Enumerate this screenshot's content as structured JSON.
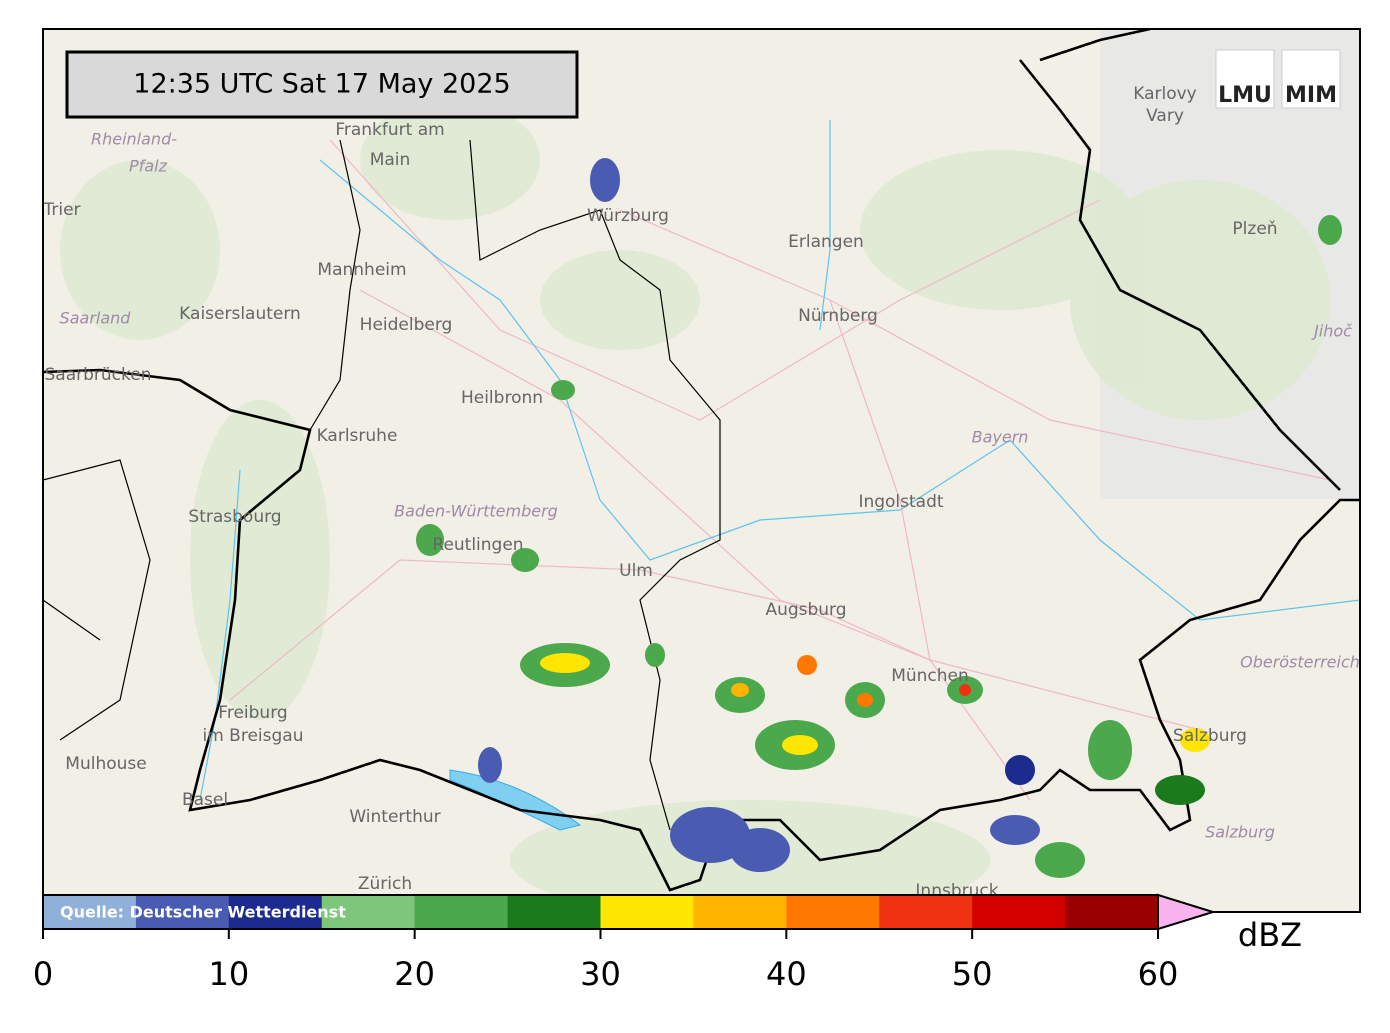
{
  "map": {
    "timestamp": "12:35 UTC  Sat 17 May 2025",
    "logo": [
      "LMU",
      "MIM"
    ],
    "places": [
      "Frankfurt am",
      "Main",
      "Trier",
      "Mannheim",
      "Kaiserslautern",
      "Heidelberg",
      "Saarbrücken",
      "Heilbronn",
      "Karlsruhe",
      "Strasbourg",
      "Reutlingen",
      "Ulm",
      "Augsburg",
      "München",
      "Freiburg",
      "im Breisgau",
      "Mulhouse",
      "Basel",
      "Winterthur",
      "Zürich",
      "Würzburg",
      "Erlangen",
      "Nürnberg",
      "Ingolstadt",
      "Karlovy",
      "Vary",
      "Plzeň",
      "Salzburg",
      "Innsbruck"
    ],
    "regions": [
      "Rheinland-",
      "Pfalz",
      "Saarland",
      "Baden-Württemberg",
      "Bayern",
      "Oberösterreich",
      "Salzburg",
      "Jihoč"
    ]
  },
  "colorbar": {
    "bounds": [
      0,
      5,
      10,
      15,
      20,
      25,
      30,
      35,
      40,
      45,
      50,
      55,
      60
    ],
    "colors": [
      "#8fb1d9",
      "#4a5bb2",
      "#1d2a8e",
      "#7ec77a",
      "#4ca84c",
      "#1b7a1b",
      "#ffe600",
      "#ffb400",
      "#ff7800",
      "#f03212",
      "#d40000",
      "#9a0000"
    ],
    "extend_color": "#f9b4f0",
    "ticks": [
      0,
      10,
      20,
      30,
      40,
      50,
      60
    ],
    "unit": "dBZ",
    "source": "Quelle: Deutscher Wetterdienst"
  }
}
